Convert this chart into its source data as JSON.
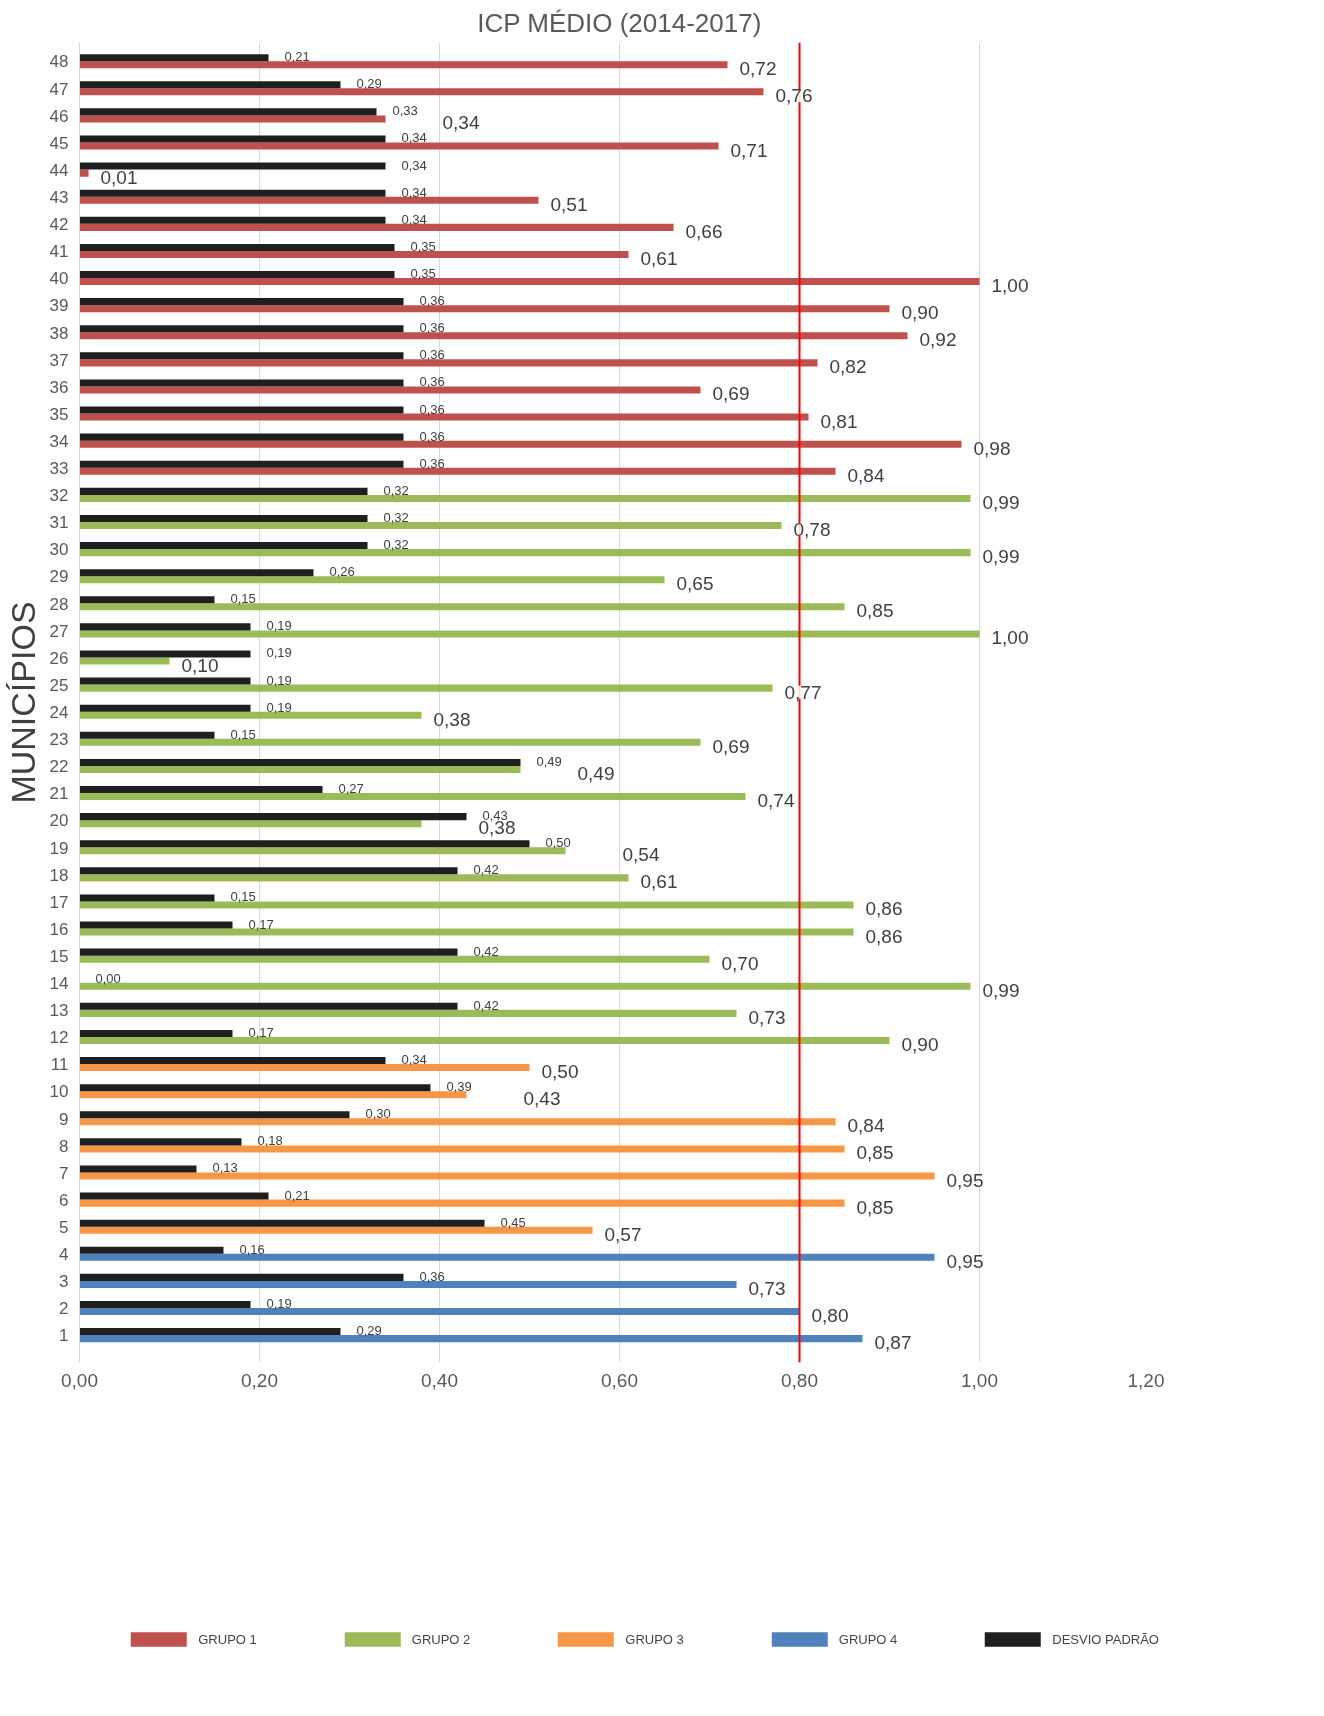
{
  "chart_data": {
    "type": "bar",
    "orientation": "horizontal",
    "title": "ICP MÉDIO (2014-2017)",
    "ylabel": "MUNICÍPIOS",
    "categories": [
      "48",
      "47",
      "46",
      "45",
      "44",
      "43",
      "42",
      "41",
      "40",
      "39",
      "38",
      "37",
      "36",
      "35",
      "34",
      "33",
      "32",
      "31",
      "30",
      "29",
      "28",
      "27",
      "26",
      "25",
      "24",
      "23",
      "22",
      "21",
      "20",
      "19",
      "18",
      "17",
      "16",
      "15",
      "14",
      "13",
      "12",
      "11",
      "10",
      "9",
      "8",
      "7",
      "6",
      "5",
      "4",
      "3",
      "2",
      "1"
    ],
    "series": [
      {
        "name": "GRUPO 1",
        "color": "#c0504d",
        "values": [
          0.72,
          0.76,
          0.34,
          0.71,
          0.01,
          0.51,
          0.66,
          0.61,
          1.0,
          0.9,
          0.92,
          0.82,
          0.69,
          0.81,
          0.98,
          0.84,
          null,
          null,
          null,
          null,
          null,
          null,
          null,
          null,
          null,
          null,
          null,
          null,
          null,
          null,
          null,
          null,
          null,
          null,
          null,
          null,
          null,
          null,
          null,
          null,
          null,
          null,
          null,
          null,
          null,
          null,
          null,
          null
        ],
        "value_labels": [
          "0,72",
          "0,76",
          "0,34",
          "0,71",
          "0,01",
          "0,51",
          "0,66",
          "0,61",
          "1,00",
          "0,90",
          "0,92",
          "0,82",
          "0,69",
          "0,81",
          "0,98",
          "0,84",
          null,
          null,
          null,
          null,
          null,
          null,
          null,
          null,
          null,
          null,
          null,
          null,
          null,
          null,
          null,
          null,
          null,
          null,
          null,
          null,
          null,
          null,
          null,
          null,
          null,
          null,
          null,
          null,
          null,
          null,
          null,
          null
        ]
      },
      {
        "name": "GRUPO 2",
        "color": "#9bbb59",
        "values": [
          null,
          null,
          null,
          null,
          null,
          null,
          null,
          null,
          null,
          null,
          null,
          null,
          null,
          null,
          null,
          null,
          0.99,
          0.78,
          0.99,
          0.65,
          0.85,
          1.0,
          0.1,
          0.77,
          0.38,
          0.69,
          0.49,
          0.74,
          0.38,
          0.54,
          0.61,
          0.86,
          0.86,
          0.7,
          0.99,
          0.73,
          0.9,
          null,
          null,
          null,
          null,
          null,
          null,
          null,
          null,
          null,
          null,
          null
        ],
        "value_labels": [
          null,
          null,
          null,
          null,
          null,
          null,
          null,
          null,
          null,
          null,
          null,
          null,
          null,
          null,
          null,
          null,
          "0,99",
          "0,78",
          "0,99",
          "0,65",
          "0,85",
          "1,00",
          "0,10",
          "0,77",
          "0,38",
          "0,69",
          "0,49",
          "0,74",
          "0,38",
          "0,54",
          "0,61",
          "0,86",
          "0,86",
          "0,70",
          "0,99",
          "0,73",
          "0,90",
          null,
          null,
          null,
          null,
          null,
          null,
          null,
          null,
          null,
          null,
          null
        ]
      },
      {
        "name": "GRUPO 3",
        "color": "#f79646",
        "values": [
          null,
          null,
          null,
          null,
          null,
          null,
          null,
          null,
          null,
          null,
          null,
          null,
          null,
          null,
          null,
          null,
          null,
          null,
          null,
          null,
          null,
          null,
          null,
          null,
          null,
          null,
          null,
          null,
          null,
          null,
          null,
          null,
          null,
          null,
          null,
          null,
          null,
          0.5,
          0.43,
          0.84,
          0.85,
          0.95,
          0.85,
          0.57,
          null,
          null,
          null,
          null
        ],
        "value_labels": [
          null,
          null,
          null,
          null,
          null,
          null,
          null,
          null,
          null,
          null,
          null,
          null,
          null,
          null,
          null,
          null,
          null,
          null,
          null,
          null,
          null,
          null,
          null,
          null,
          null,
          null,
          null,
          null,
          null,
          null,
          null,
          null,
          null,
          null,
          null,
          null,
          null,
          "0,50",
          "0,43",
          "0,84",
          "0,85",
          "0,95",
          "0,85",
          "0,57",
          null,
          null,
          null,
          null
        ]
      },
      {
        "name": "GRUPO 4",
        "color": "#4f81bd",
        "values": [
          null,
          null,
          null,
          null,
          null,
          null,
          null,
          null,
          null,
          null,
          null,
          null,
          null,
          null,
          null,
          null,
          null,
          null,
          null,
          null,
          null,
          null,
          null,
          null,
          null,
          null,
          null,
          null,
          null,
          null,
          null,
          null,
          null,
          null,
          null,
          null,
          null,
          null,
          null,
          null,
          null,
          null,
          null,
          null,
          0.95,
          0.73,
          0.8,
          0.87
        ],
        "value_labels": [
          null,
          null,
          null,
          null,
          null,
          null,
          null,
          null,
          null,
          null,
          null,
          null,
          null,
          null,
          null,
          null,
          null,
          null,
          null,
          null,
          null,
          null,
          null,
          null,
          null,
          null,
          null,
          null,
          null,
          null,
          null,
          null,
          null,
          null,
          null,
          null,
          null,
          null,
          null,
          null,
          null,
          null,
          null,
          null,
          "0,95",
          "0,73",
          "0,80",
          "0,87"
        ]
      },
      {
        "name": "DESVIO PADRÃO",
        "color": "#1f1f1f",
        "values": [
          0.21,
          0.29,
          0.33,
          0.34,
          0.34,
          0.34,
          0.34,
          0.35,
          0.35,
          0.36,
          0.36,
          0.36,
          0.36,
          0.36,
          0.36,
          0.36,
          0.32,
          0.32,
          0.32,
          0.26,
          0.15,
          0.19,
          0.19,
          0.19,
          0.19,
          0.15,
          0.49,
          0.27,
          0.43,
          0.5,
          0.42,
          0.15,
          0.17,
          0.42,
          0.0,
          0.42,
          0.17,
          0.34,
          0.39,
          0.3,
          0.18,
          0.13,
          0.21,
          0.45,
          0.16,
          0.36,
          0.19,
          0.29
        ],
        "value_labels": [
          "0,21",
          "0,29",
          "0,33",
          "0,34",
          "0,34",
          "0,34",
          "0,34",
          "0,35",
          "0,35",
          "0,36",
          "0,36",
          "0,36",
          "0,36",
          "0,36",
          "0,36",
          "0,36",
          "0,32",
          "0,32",
          "0,32",
          "0,26",
          "0,15",
          "0,19",
          "0,19",
          "0,19",
          "0,19",
          "0,15",
          "0,49",
          "0,27",
          "0,43",
          "0,50",
          "0,42",
          "0,15",
          "0,17",
          "0,42",
          "0,00",
          "0,42",
          "0,17",
          "0,34",
          "0,39",
          "0,30",
          "0,18",
          "0,13",
          "0,21",
          "0,45",
          "0,16",
          "0,36",
          "0,19",
          "0,29"
        ]
      }
    ],
    "xlim": [
      0,
      1.2
    ],
    "xticks": [
      {
        "value": 0,
        "label": "0,00"
      },
      {
        "value": 0.2,
        "label": "0,20"
      },
      {
        "value": 0.4,
        "label": "0,40"
      },
      {
        "value": 0.6,
        "label": "0,60"
      },
      {
        "value": 0.8,
        "label": "0,80"
      },
      {
        "value": 1.0,
        "label": "1,00"
      },
      {
        "value": 1.2,
        "label": "1,20"
      }
    ],
    "ref_lines": [
      {
        "axis": "x",
        "value": 0.8,
        "label": null,
        "color": "#ff0000"
      }
    ],
    "grid": "x",
    "legend": "bottom"
  }
}
